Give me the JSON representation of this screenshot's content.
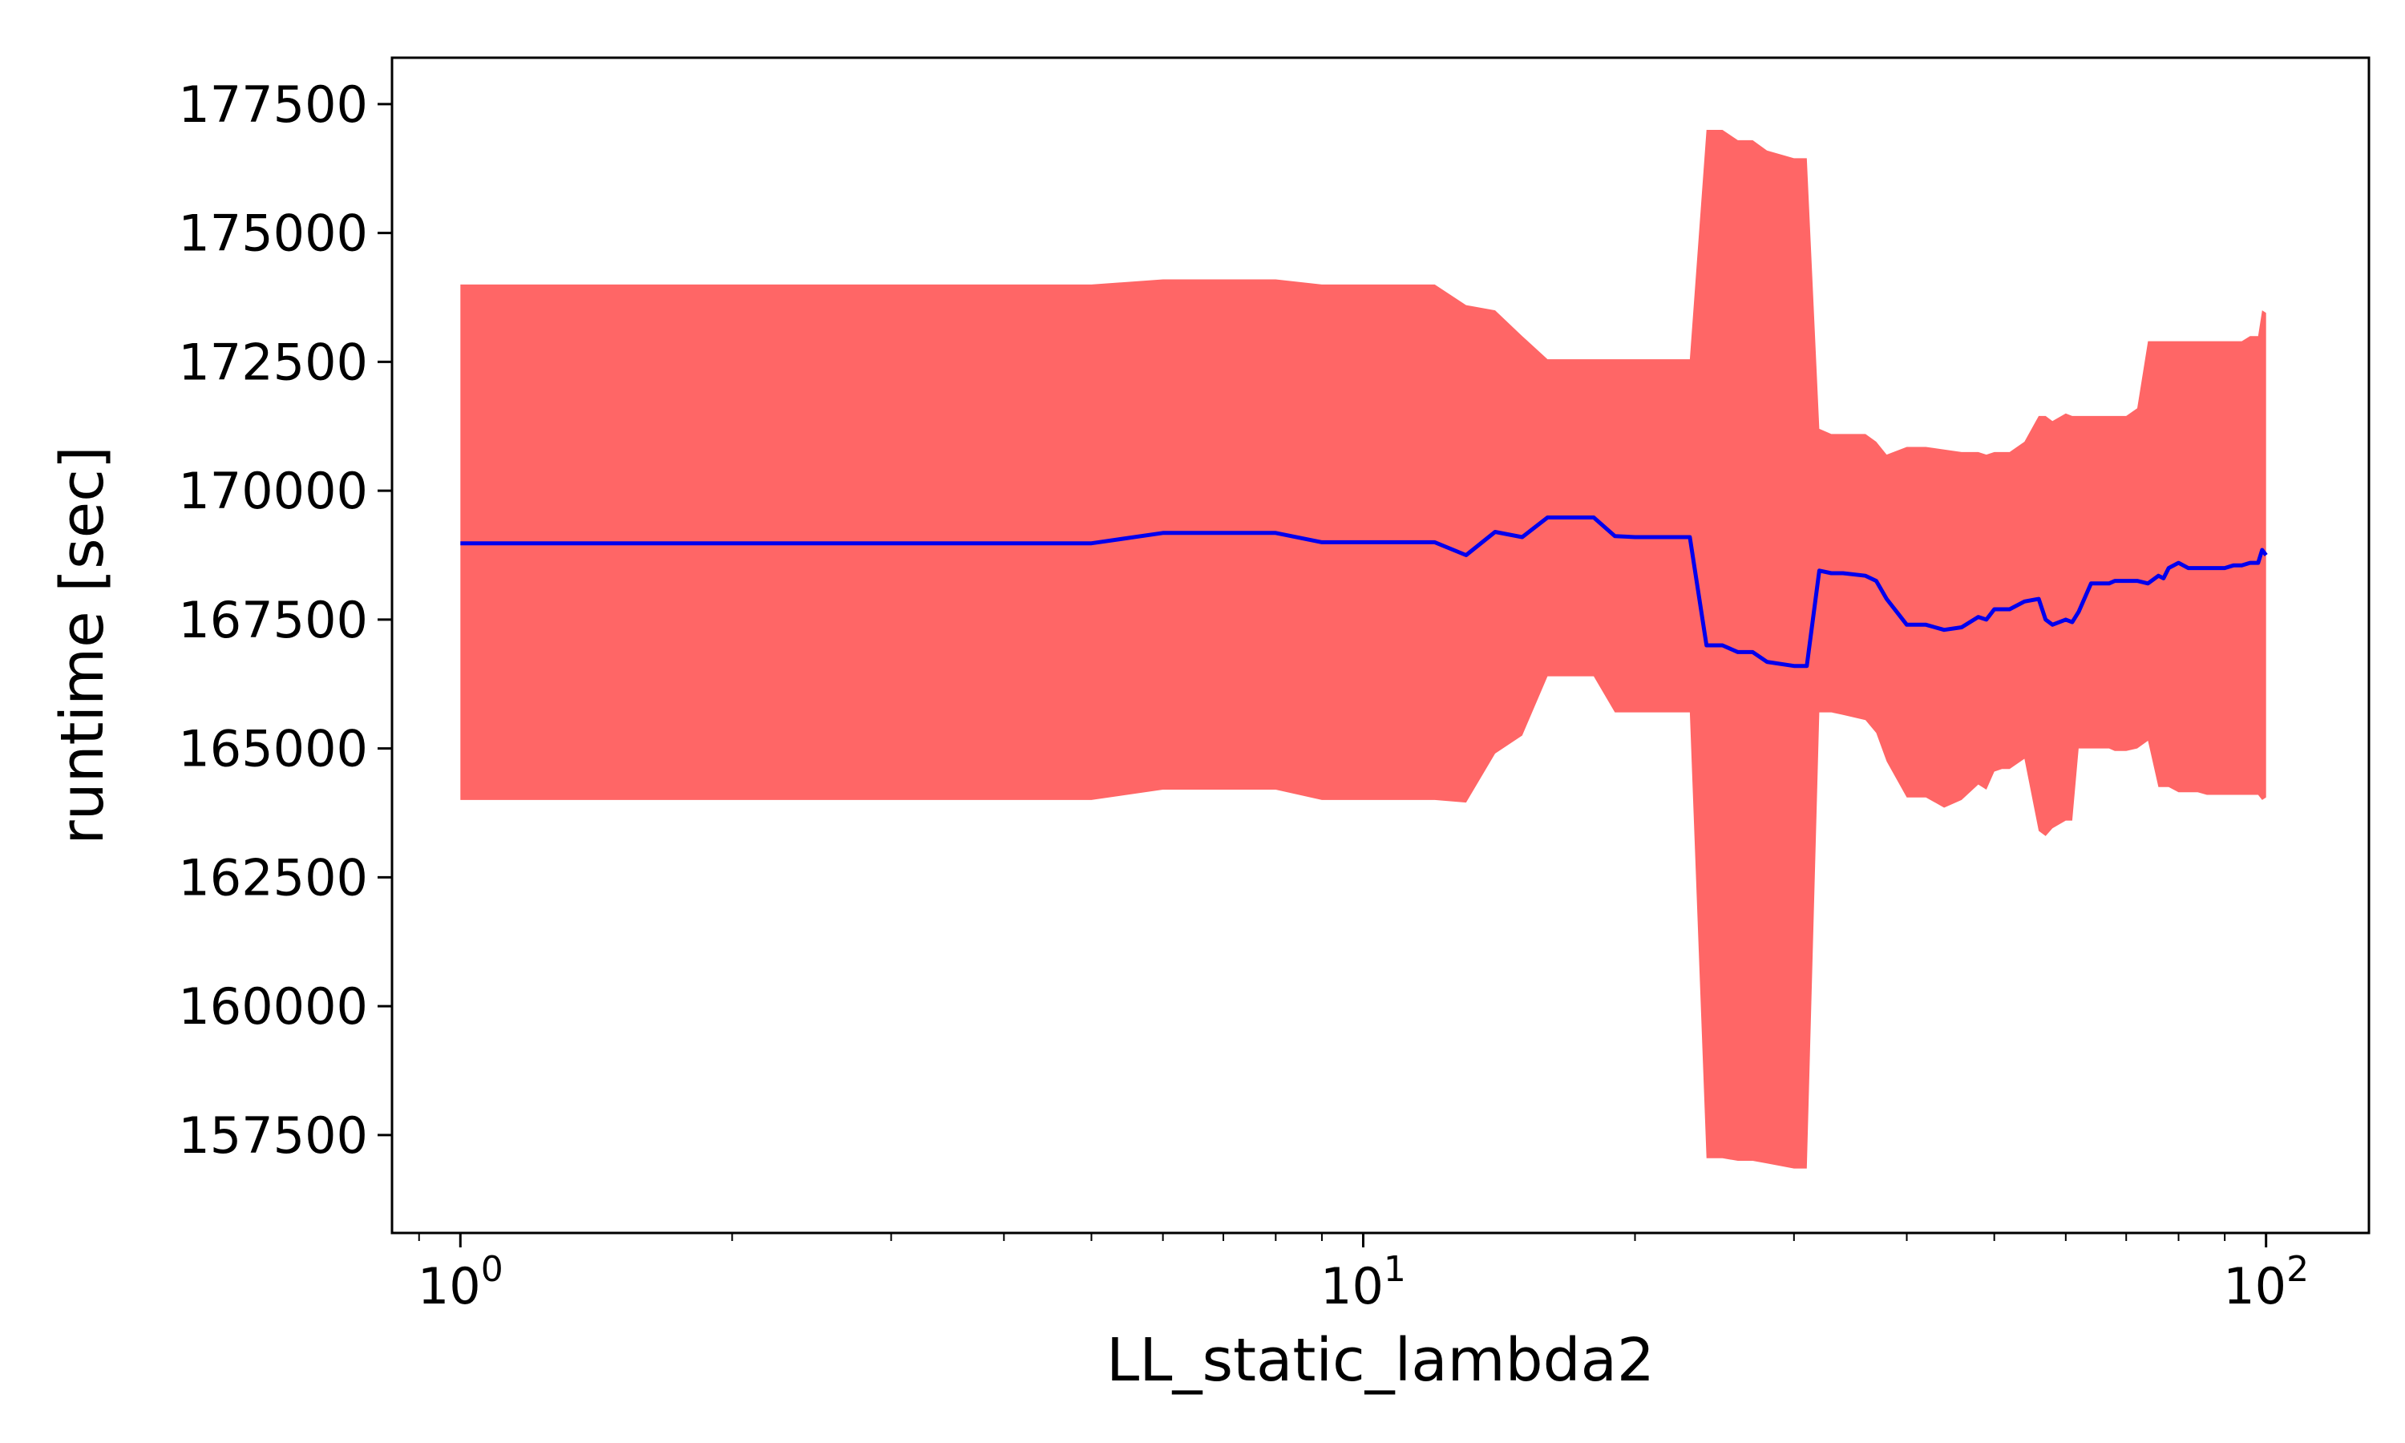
{
  "chart_data": {
    "type": "line",
    "xlabel": "LL_static_lambda2",
    "ylabel": "runtime [sec]",
    "x_scale": "log",
    "xlim": [
      0.84,
      130
    ],
    "ylim": [
      155600,
      178400
    ],
    "grid": false,
    "legend": "none",
    "x_ticks": [
      {
        "value": 1,
        "base": "10",
        "exp": "0"
      },
      {
        "value": 10,
        "base": "10",
        "exp": "1"
      },
      {
        "value": 100,
        "base": "10",
        "exp": "2"
      }
    ],
    "y_ticks": [
      157500,
      160000,
      162500,
      165000,
      167500,
      170000,
      172500,
      175000,
      177500
    ],
    "colors": {
      "line": "#0000ee",
      "band": "#ff6666"
    },
    "x": [
      1,
      5,
      6,
      8,
      9,
      12,
      13,
      14,
      15,
      16,
      18,
      19,
      20,
      21,
      23,
      24,
      25,
      26,
      27,
      28,
      30,
      31,
      32,
      33,
      34,
      36,
      37,
      38,
      40,
      42,
      44,
      46,
      48,
      49,
      50,
      51,
      52,
      54,
      56,
      57,
      58,
      60,
      61,
      62,
      64,
      66,
      67,
      68,
      70,
      72,
      74,
      76,
      77,
      78,
      80,
      82,
      84,
      86,
      88,
      90,
      92,
      94,
      96,
      98,
      99,
      100
    ],
    "mean": [
      168980,
      168980,
      169180,
      169180,
      169000,
      169000,
      168750,
      169200,
      169100,
      169480,
      169480,
      169120,
      169100,
      169100,
      169100,
      167000,
      167000,
      166870,
      166870,
      166680,
      166600,
      166600,
      168450,
      168400,
      168400,
      168350,
      168250,
      167900,
      167400,
      167400,
      167300,
      167350,
      167550,
      167500,
      167700,
      167700,
      167700,
      167850,
      167900,
      167500,
      167400,
      167500,
      167450,
      167650,
      168200,
      168200,
      168200,
      168250,
      168250,
      168250,
      168200,
      168350,
      168300,
      168500,
      168600,
      168500,
      168500,
      168500,
      168500,
      168500,
      168550,
      168550,
      168600,
      168600,
      168850,
      168750
    ],
    "upper": [
      174000,
      174000,
      174100,
      174100,
      174000,
      174000,
      173600,
      173500,
      173000,
      172550,
      172550,
      172550,
      172550,
      172550,
      172550,
      177000,
      177000,
      176800,
      176800,
      176600,
      176450,
      176450,
      171200,
      171100,
      171100,
      171100,
      170950,
      170700,
      170850,
      170850,
      170800,
      170750,
      170750,
      170700,
      170750,
      170750,
      170750,
      170950,
      171450,
      171450,
      171350,
      171500,
      171450,
      171450,
      171450,
      171450,
      171450,
      171450,
      171450,
      171600,
      172900,
      172900,
      172900,
      172900,
      172900,
      172900,
      172900,
      172900,
      172900,
      172900,
      172900,
      172900,
      173000,
      173000,
      173500,
      173450
    ],
    "lower": [
      164000,
      164000,
      164200,
      164200,
      164000,
      164000,
      163950,
      164900,
      165250,
      166400,
      166400,
      165700,
      165700,
      165700,
      165700,
      157050,
      157050,
      157000,
      157000,
      156950,
      156850,
      156850,
      165700,
      165700,
      165650,
      165550,
      165300,
      164750,
      164050,
      164050,
      163850,
      164000,
      164300,
      164200,
      164550,
      164600,
      164600,
      164800,
      163400,
      163300,
      163450,
      163600,
      163600,
      165000,
      165000,
      165000,
      165000,
      164950,
      164950,
      165000,
      165150,
      164250,
      164250,
      164250,
      164150,
      164150,
      164150,
      164100,
      164100,
      164100,
      164100,
      164100,
      164100,
      164100,
      164000,
      164050
    ]
  }
}
